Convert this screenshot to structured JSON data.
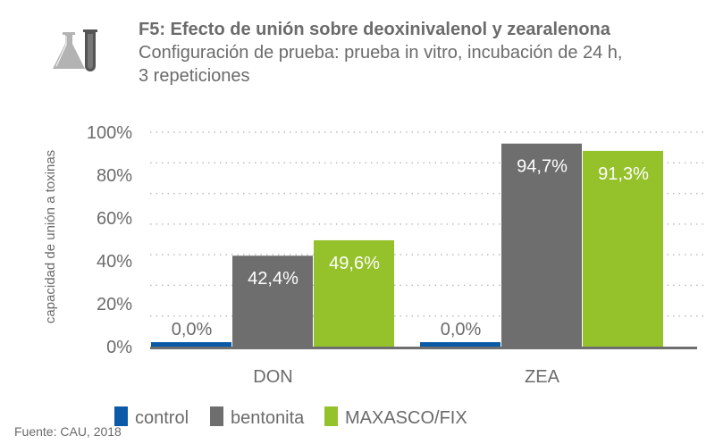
{
  "icon": "lab-flask-test-tube-icon",
  "chart_data": {
    "type": "bar",
    "title": "F5: Efecto de unión sobre deoxinivalenol y zearalenona",
    "subtitle_lines": [
      "Configuración de prueba: prueba in vitro, incubación de 24 h,",
      "3 repeticiones"
    ],
    "ylabel": "capacidad de unión a toxinas",
    "xlabel": "",
    "ylim": [
      0,
      100
    ],
    "yticks": [
      "0%",
      "20%",
      "40%",
      "60%",
      "80%",
      "100%"
    ],
    "grid": "dotted horizontal",
    "categories": [
      "DON",
      "ZEA"
    ],
    "series": [
      {
        "name": "control",
        "color": "#0a5aa8",
        "values": [
          0.0,
          0.0
        ],
        "labels": [
          "0,0%",
          "0,0%"
        ]
      },
      {
        "name": "bentonita",
        "color": "#6e6e6e",
        "values": [
          42.4,
          94.7
        ],
        "labels": [
          "42,4%",
          "94,7%"
        ]
      },
      {
        "name": "MAXASCO/FIX",
        "color": "#95c12b",
        "values": [
          49.6,
          91.3
        ],
        "labels": [
          "49,6%",
          "91,3%"
        ]
      }
    ],
    "legend": "bottom",
    "source": "Fuente: CAU, 2018"
  }
}
